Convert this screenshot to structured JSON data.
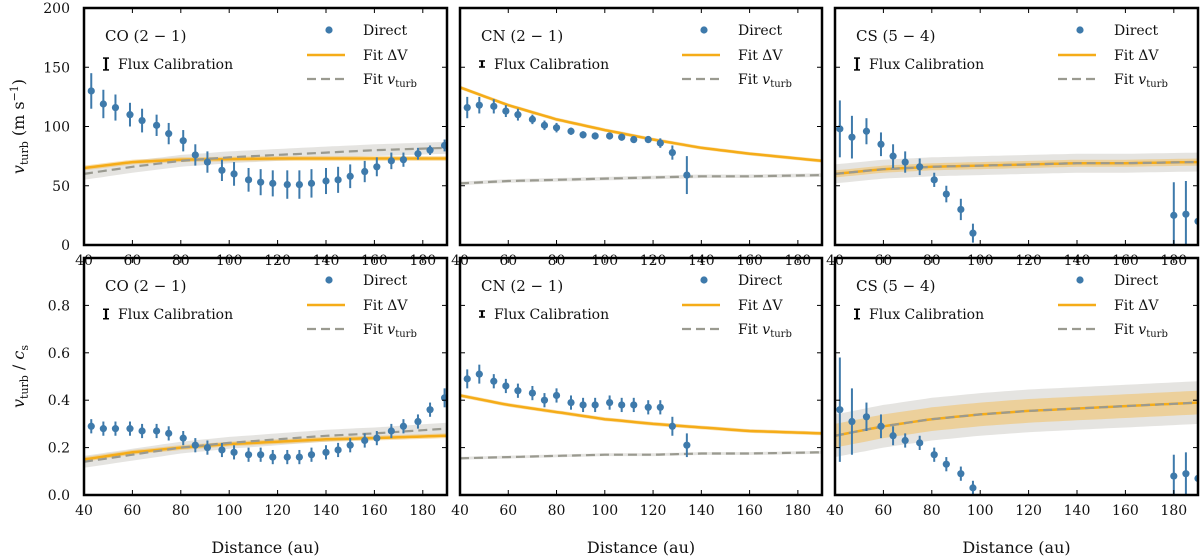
{
  "xlabel": "Distance (au)",
  "colors": {
    "direct": "#3e7aab",
    "fit_dv": "#f5ac18",
    "fit_dv_band": "#f3b848",
    "fit_vturb": "#9a9a90",
    "fit_vturb_band": "#cfcdc8"
  },
  "legend": {
    "direct": "Direct",
    "fit_dv": "Fit ΔV",
    "fit_vturb_prefix": "Fit ",
    "fit_vturb_sym": "v",
    "fit_vturb_sub": "turb",
    "flux": "Flux Calibration"
  },
  "rows": [
    {
      "ylabel": "v_turb (m s^-1)",
      "ylabel_sym": "v",
      "ylabel_sub": "turb",
      "ylabel_rest": "(m s",
      "ylabel_sup": "−1",
      "ylabel_close": ")",
      "ylim": [
        0,
        200
      ],
      "yticks": [
        0,
        50,
        100,
        150,
        200
      ]
    },
    {
      "ylabel": "v_turb / c_s",
      "ylabel_sym": "v",
      "ylabel_sub": "turb",
      "ylabel_rest": "/ ",
      "ylabel_sym2": "c",
      "ylabel_sub2": "s",
      "ylim": [
        0,
        1.0
      ],
      "yticks": [
        0.0,
        0.2,
        0.4,
        0.6,
        0.8
      ]
    }
  ],
  "xticks": [
    40,
    60,
    80,
    100,
    120,
    140,
    160,
    180
  ],
  "chart_data": [
    {
      "type": "scatter",
      "title": "CO (2 − 1)",
      "row": 0,
      "col": 0,
      "xlim": [
        40,
        190
      ],
      "ylim": [
        0,
        200
      ],
      "flux_half": 5,
      "direct": {
        "x": [
          43,
          48,
          53,
          59,
          64,
          70,
          75,
          81,
          86,
          91,
          97,
          102,
          108,
          113,
          118,
          124,
          129,
          134,
          140,
          145,
          150,
          156,
          161,
          167,
          172,
          178,
          183,
          189
        ],
        "y": [
          130,
          119,
          116,
          110,
          105,
          101,
          94,
          88,
          76,
          70,
          63,
          60,
          55,
          53,
          52,
          51,
          51,
          52,
          54,
          55,
          58,
          62,
          66,
          71,
          72,
          77,
          80,
          84
        ],
        "err": [
          15,
          12,
          11,
          10,
          10,
          9,
          9,
          9,
          9,
          9,
          9,
          10,
          10,
          11,
          11,
          12,
          12,
          12,
          11,
          11,
          10,
          9,
          8,
          7,
          6,
          5,
          4,
          5
        ]
      },
      "fit_dv": {
        "x": [
          40,
          60,
          80,
          100,
          120,
          140,
          160,
          190
        ],
        "y": [
          65,
          70,
          72,
          72.5,
          73,
          73,
          73,
          73
        ],
        "band": 2
      },
      "fit_vturb": {
        "x": [
          40,
          60,
          80,
          100,
          120,
          140,
          160,
          190
        ],
        "y": [
          60,
          66,
          71,
          74,
          76,
          78,
          80,
          82
        ],
        "band": 5
      }
    },
    {
      "type": "scatter",
      "title": "CN (2 − 1)",
      "row": 0,
      "col": 1,
      "xlim": [
        40,
        190
      ],
      "ylim": [
        0,
        200
      ],
      "flux_half": 2,
      "direct": {
        "x": [
          43,
          48,
          54,
          59,
          64,
          70,
          75,
          80,
          86,
          91,
          96,
          102,
          107,
          112,
          118,
          123,
          128,
          134
        ],
        "y": [
          116,
          118,
          117,
          113,
          110,
          106,
          101,
          99,
          96,
          93,
          92,
          92,
          91,
          89,
          89,
          86,
          78,
          59
        ],
        "err": [
          9,
          7,
          6,
          5,
          5,
          4,
          4,
          4,
          3,
          3,
          3,
          3,
          3,
          3,
          3,
          4,
          6,
          16
        ]
      },
      "fit_dv": {
        "x": [
          40,
          60,
          80,
          100,
          120,
          140,
          160,
          190
        ],
        "y": [
          133,
          118,
          106,
          97,
          89,
          82,
          77,
          71
        ],
        "band": 1.5
      },
      "fit_vturb": {
        "x": [
          40,
          60,
          80,
          100,
          120,
          140,
          160,
          190
        ],
        "y": [
          52,
          54,
          55,
          56,
          57,
          58,
          58,
          59
        ],
        "band": 1.5
      }
    },
    {
      "type": "scatter",
      "title": "CS (5 − 4)",
      "row": 0,
      "col": 2,
      "xlim": [
        40,
        190
      ],
      "ylim": [
        0,
        200
      ],
      "flux_half": 5,
      "direct": {
        "x": [
          42,
          47,
          53,
          59,
          64,
          69,
          75,
          81,
          86,
          92,
          97,
          180,
          185,
          190
        ],
        "y": [
          98,
          91,
          96,
          85,
          75,
          70,
          66,
          55,
          43,
          30,
          10,
          25,
          26,
          20
        ],
        "err": [
          24,
          18,
          11,
          10,
          10,
          9,
          7,
          6,
          7,
          9,
          8,
          28,
          28,
          28
        ]
      },
      "fit_dv": {
        "x": [
          40,
          60,
          80,
          100,
          120,
          140,
          160,
          190
        ],
        "y": [
          60,
          64,
          66,
          67,
          68,
          69,
          69,
          70
        ],
        "band": 3
      },
      "fit_vturb": {
        "x": [
          40,
          60,
          80,
          100,
          120,
          140,
          160,
          190
        ],
        "y": [
          60,
          64,
          66,
          67,
          68,
          69,
          69,
          70
        ],
        "band": 8
      }
    },
    {
      "type": "scatter",
      "title": "CO (2 − 1)",
      "row": 1,
      "col": 0,
      "xlim": [
        40,
        190
      ],
      "ylim": [
        0,
        1.0
      ],
      "flux_half": 0.02,
      "direct": {
        "x": [
          43,
          48,
          53,
          59,
          64,
          70,
          75,
          81,
          86,
          91,
          97,
          102,
          108,
          113,
          118,
          124,
          129,
          134,
          140,
          145,
          150,
          156,
          161,
          167,
          172,
          178,
          183,
          189
        ],
        "y": [
          0.29,
          0.28,
          0.28,
          0.28,
          0.27,
          0.27,
          0.26,
          0.24,
          0.21,
          0.2,
          0.19,
          0.18,
          0.17,
          0.17,
          0.16,
          0.16,
          0.16,
          0.17,
          0.18,
          0.19,
          0.21,
          0.23,
          0.24,
          0.27,
          0.29,
          0.31,
          0.36,
          0.41
        ],
        "err": [
          0.03,
          0.03,
          0.03,
          0.03,
          0.03,
          0.03,
          0.03,
          0.03,
          0.03,
          0.03,
          0.03,
          0.03,
          0.03,
          0.03,
          0.03,
          0.03,
          0.03,
          0.03,
          0.03,
          0.03,
          0.03,
          0.03,
          0.03,
          0.03,
          0.03,
          0.03,
          0.03,
          0.04
        ]
      },
      "fit_dv": {
        "x": [
          40,
          60,
          80,
          100,
          120,
          140,
          160,
          190
        ],
        "y": [
          0.15,
          0.18,
          0.2,
          0.215,
          0.225,
          0.235,
          0.24,
          0.25
        ],
        "band": 0.01
      },
      "fit_vturb": {
        "x": [
          40,
          60,
          80,
          100,
          120,
          140,
          160,
          190
        ],
        "y": [
          0.14,
          0.17,
          0.2,
          0.22,
          0.235,
          0.25,
          0.26,
          0.28
        ],
        "band": 0.025
      }
    },
    {
      "type": "scatter",
      "title": "CN (2 − 1)",
      "row": 1,
      "col": 1,
      "xlim": [
        40,
        190
      ],
      "ylim": [
        0,
        1.0
      ],
      "flux_half": 0.01,
      "direct": {
        "x": [
          43,
          48,
          54,
          59,
          64,
          70,
          75,
          80,
          86,
          91,
          96,
          102,
          107,
          112,
          118,
          123,
          128,
          134
        ],
        "y": [
          0.49,
          0.51,
          0.48,
          0.46,
          0.44,
          0.43,
          0.4,
          0.42,
          0.39,
          0.38,
          0.38,
          0.39,
          0.38,
          0.38,
          0.37,
          0.37,
          0.29,
          0.21
        ],
        "err": [
          0.04,
          0.04,
          0.03,
          0.03,
          0.03,
          0.03,
          0.03,
          0.03,
          0.03,
          0.03,
          0.03,
          0.03,
          0.03,
          0.03,
          0.03,
          0.03,
          0.04,
          0.05
        ]
      },
      "fit_dv": {
        "x": [
          40,
          60,
          80,
          100,
          120,
          140,
          160,
          190
        ],
        "y": [
          0.42,
          0.38,
          0.35,
          0.32,
          0.3,
          0.285,
          0.27,
          0.26
        ],
        "band": 0.008
      },
      "fit_vturb": {
        "x": [
          40,
          60,
          80,
          100,
          120,
          140,
          160,
          190
        ],
        "y": [
          0.155,
          0.16,
          0.165,
          0.17,
          0.17,
          0.175,
          0.175,
          0.18
        ],
        "band": 0.006
      }
    },
    {
      "type": "scatter",
      "title": "CS (5 − 4)",
      "row": 1,
      "col": 2,
      "xlim": [
        40,
        190
      ],
      "ylim": [
        0,
        1.0
      ],
      "flux_half": 0.02,
      "direct": {
        "x": [
          42,
          47,
          53,
          59,
          64,
          69,
          75,
          81,
          86,
          92,
          97,
          180,
          185,
          190
        ],
        "y": [
          0.36,
          0.31,
          0.33,
          0.29,
          0.25,
          0.23,
          0.22,
          0.17,
          0.13,
          0.09,
          0.03,
          0.08,
          0.09,
          0.07
        ],
        "err": [
          0.22,
          0.14,
          0.06,
          0.05,
          0.04,
          0.03,
          0.03,
          0.03,
          0.03,
          0.03,
          0.03,
          0.09,
          0.09,
          0.09
        ]
      },
      "fit_dv": {
        "x": [
          40,
          60,
          80,
          100,
          120,
          140,
          160,
          190
        ],
        "y": [
          0.25,
          0.29,
          0.32,
          0.34,
          0.355,
          0.365,
          0.375,
          0.39
        ],
        "band": 0.05
      },
      "fit_vturb": {
        "x": [
          40,
          60,
          80,
          100,
          120,
          140,
          160,
          190
        ],
        "y": [
          0.25,
          0.29,
          0.32,
          0.34,
          0.355,
          0.365,
          0.375,
          0.39
        ],
        "band": 0.09
      }
    }
  ]
}
